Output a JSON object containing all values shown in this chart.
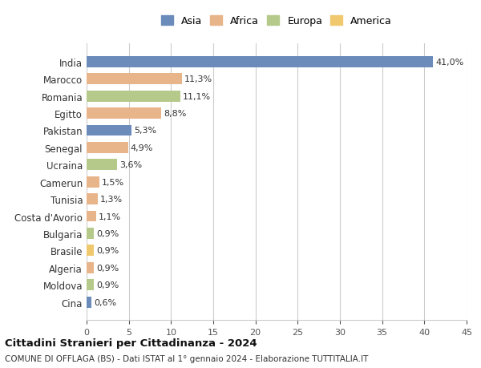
{
  "categories": [
    "India",
    "Marocco",
    "Romania",
    "Egitto",
    "Pakistan",
    "Senegal",
    "Ucraina",
    "Camerun",
    "Tunisia",
    "Costa d'Avorio",
    "Bulgaria",
    "Brasile",
    "Algeria",
    "Moldova",
    "Cina"
  ],
  "values": [
    41.0,
    11.3,
    11.1,
    8.8,
    5.3,
    4.9,
    3.6,
    1.5,
    1.3,
    1.1,
    0.9,
    0.9,
    0.9,
    0.9,
    0.6
  ],
  "labels": [
    "41,0%",
    "11,3%",
    "11,1%",
    "8,8%",
    "5,3%",
    "4,9%",
    "3,6%",
    "1,5%",
    "1,3%",
    "1,1%",
    "0,9%",
    "0,9%",
    "0,9%",
    "0,9%",
    "0,6%"
  ],
  "continent": [
    "Asia",
    "Africa",
    "Europa",
    "Africa",
    "Asia",
    "Africa",
    "Europa",
    "Africa",
    "Africa",
    "Africa",
    "Europa",
    "America",
    "Africa",
    "Europa",
    "Asia"
  ],
  "colors": {
    "Asia": "#6b8cba",
    "Africa": "#e8b48a",
    "Europa": "#b5c98a",
    "America": "#f0c96e"
  },
  "legend_order": [
    "Asia",
    "Africa",
    "Europa",
    "America"
  ],
  "xlim": [
    0,
    45
  ],
  "xticks": [
    0,
    5,
    10,
    15,
    20,
    25,
    30,
    35,
    40,
    45
  ],
  "title": "Cittadini Stranieri per Cittadinanza - 2024",
  "subtitle": "COMUNE DI OFFLAGA (BS) - Dati ISTAT al 1° gennaio 2024 - Elaborazione TUTTITALIA.IT",
  "background_color": "#ffffff",
  "grid_color": "#cccccc",
  "bar_height": 0.65
}
